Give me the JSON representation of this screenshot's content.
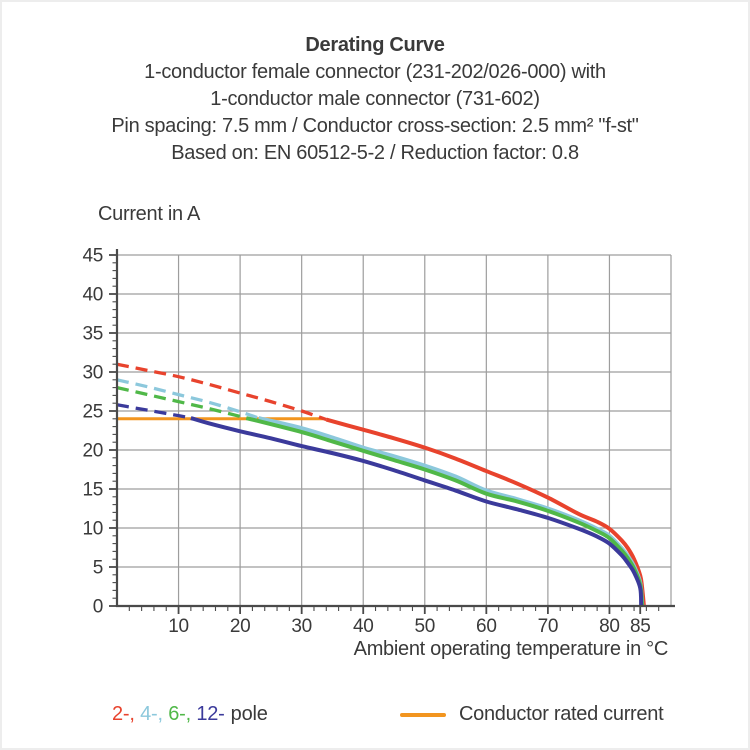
{
  "header": {
    "title": "Derating Curve",
    "subtitles": [
      "1-conductor female connector (231-202/026-000) with",
      "1-conductor male connector (731-602)",
      "Pin spacing: 7.5 mm / Conductor cross-section: 2.5 mm² \"f-st\"",
      "Based on: EN 60512-5-2 / Reduction factor: 0.8"
    ]
  },
  "legend": {
    "pole_items": [
      "2-",
      "4-",
      "6-",
      "12-"
    ],
    "pole_suffix": "pole",
    "rated_label": "Conductor rated current"
  },
  "chart_data": {
    "type": "line",
    "title": "Derating Curve",
    "ylabel": "Current in A",
    "xlabel": "Ambient operating temperature in °C",
    "xlim": [
      0,
      90
    ],
    "ylim": [
      0,
      45
    ],
    "x_ticks": [
      10,
      20,
      30,
      40,
      50,
      60,
      70,
      80,
      85
    ],
    "x_gridlines": [
      10,
      20,
      30,
      40,
      50,
      60,
      70,
      80
    ],
    "x_minor_step": 2,
    "y_ticks": [
      0,
      5,
      10,
      15,
      20,
      25,
      30,
      35,
      40,
      45
    ],
    "y_gridlines": [
      5,
      10,
      15,
      20,
      25,
      30,
      35,
      40,
      45
    ],
    "y_minor_step": 1,
    "grid_color": "#9d9d9d",
    "axis_color": "#4a4a4a",
    "text_color": "#3a3a3a",
    "rated_current": {
      "label": "Conductor rated current",
      "y": 24,
      "x_start": 0,
      "x_end": 33.5,
      "color": "#f2951f"
    },
    "series": [
      {
        "name": "2-pole",
        "color": "#e8432d",
        "dashed": [
          [
            0,
            31
          ],
          [
            5,
            30.2
          ],
          [
            10,
            29.4
          ],
          [
            15,
            28.4
          ],
          [
            20,
            27.3
          ],
          [
            25,
            26.2
          ],
          [
            30,
            25.0
          ],
          [
            34,
            23.9
          ]
        ],
        "solid": [
          [
            34,
            23.9
          ],
          [
            40,
            22.6
          ],
          [
            45,
            21.5
          ],
          [
            50,
            20.3
          ],
          [
            55,
            18.9
          ],
          [
            60,
            17.3
          ],
          [
            65,
            15.7
          ],
          [
            70,
            13.9
          ],
          [
            75,
            11.8
          ],
          [
            78,
            10.8
          ],
          [
            80,
            9.9
          ],
          [
            82,
            8.4
          ],
          [
            83,
            7.4
          ],
          [
            84,
            6.0
          ],
          [
            85,
            3.9
          ],
          [
            85.3,
            2.4
          ],
          [
            85.6,
            0
          ]
        ]
      },
      {
        "name": "4-pole",
        "color": "#8cc8dc",
        "dashed": [
          [
            0,
            29
          ],
          [
            5,
            28.1
          ],
          [
            10,
            27.1
          ],
          [
            15,
            26.1
          ],
          [
            20,
            24.9
          ],
          [
            23,
            24.1
          ]
        ],
        "solid": [
          [
            23,
            24.1
          ],
          [
            30,
            22.8
          ],
          [
            35,
            21.6
          ],
          [
            40,
            20.3
          ],
          [
            45,
            19.2
          ],
          [
            50,
            18.0
          ],
          [
            55,
            16.6
          ],
          [
            60,
            14.8
          ],
          [
            65,
            13.7
          ],
          [
            70,
            12.5
          ],
          [
            75,
            11.0
          ],
          [
            78,
            9.9
          ],
          [
            80,
            9.0
          ],
          [
            82,
            7.4
          ],
          [
            83,
            6.4
          ],
          [
            84,
            5.1
          ],
          [
            85,
            3.0
          ],
          [
            85.35,
            0
          ]
        ]
      },
      {
        "name": "6-pole",
        "color": "#50b848",
        "dashed": [
          [
            0,
            28
          ],
          [
            5,
            27.1
          ],
          [
            10,
            26.2
          ],
          [
            15,
            25.3
          ],
          [
            21,
            24.1
          ]
        ],
        "solid": [
          [
            21,
            24.1
          ],
          [
            30,
            22.3
          ],
          [
            35,
            21.1
          ],
          [
            40,
            19.9
          ],
          [
            45,
            18.7
          ],
          [
            50,
            17.5
          ],
          [
            55,
            16.1
          ],
          [
            60,
            14.4
          ],
          [
            65,
            13.4
          ],
          [
            70,
            12.2
          ],
          [
            75,
            10.7
          ],
          [
            78,
            9.6
          ],
          [
            80,
            8.7
          ],
          [
            82,
            7.1
          ],
          [
            83,
            6.1
          ],
          [
            84,
            4.8
          ],
          [
            85,
            2.7
          ],
          [
            85.3,
            0
          ]
        ]
      },
      {
        "name": "12-pole",
        "color": "#3b3a9b",
        "dashed": [
          [
            0,
            25.8
          ],
          [
            5,
            25.1
          ],
          [
            10,
            24.4
          ],
          [
            12,
            24.1
          ]
        ],
        "solid": [
          [
            12,
            24.1
          ],
          [
            15,
            23.4
          ],
          [
            20,
            22.4
          ],
          [
            25,
            21.5
          ],
          [
            30,
            20.5
          ],
          [
            35,
            19.6
          ],
          [
            40,
            18.6
          ],
          [
            45,
            17.4
          ],
          [
            50,
            16.1
          ],
          [
            55,
            14.8
          ],
          [
            60,
            13.4
          ],
          [
            65,
            12.4
          ],
          [
            70,
            11.3
          ],
          [
            75,
            9.9
          ],
          [
            78,
            8.9
          ],
          [
            80,
            8.0
          ],
          [
            82,
            6.5
          ],
          [
            83,
            5.5
          ],
          [
            84,
            4.3
          ],
          [
            85,
            2.3
          ],
          [
            85.15,
            0
          ]
        ]
      }
    ]
  }
}
